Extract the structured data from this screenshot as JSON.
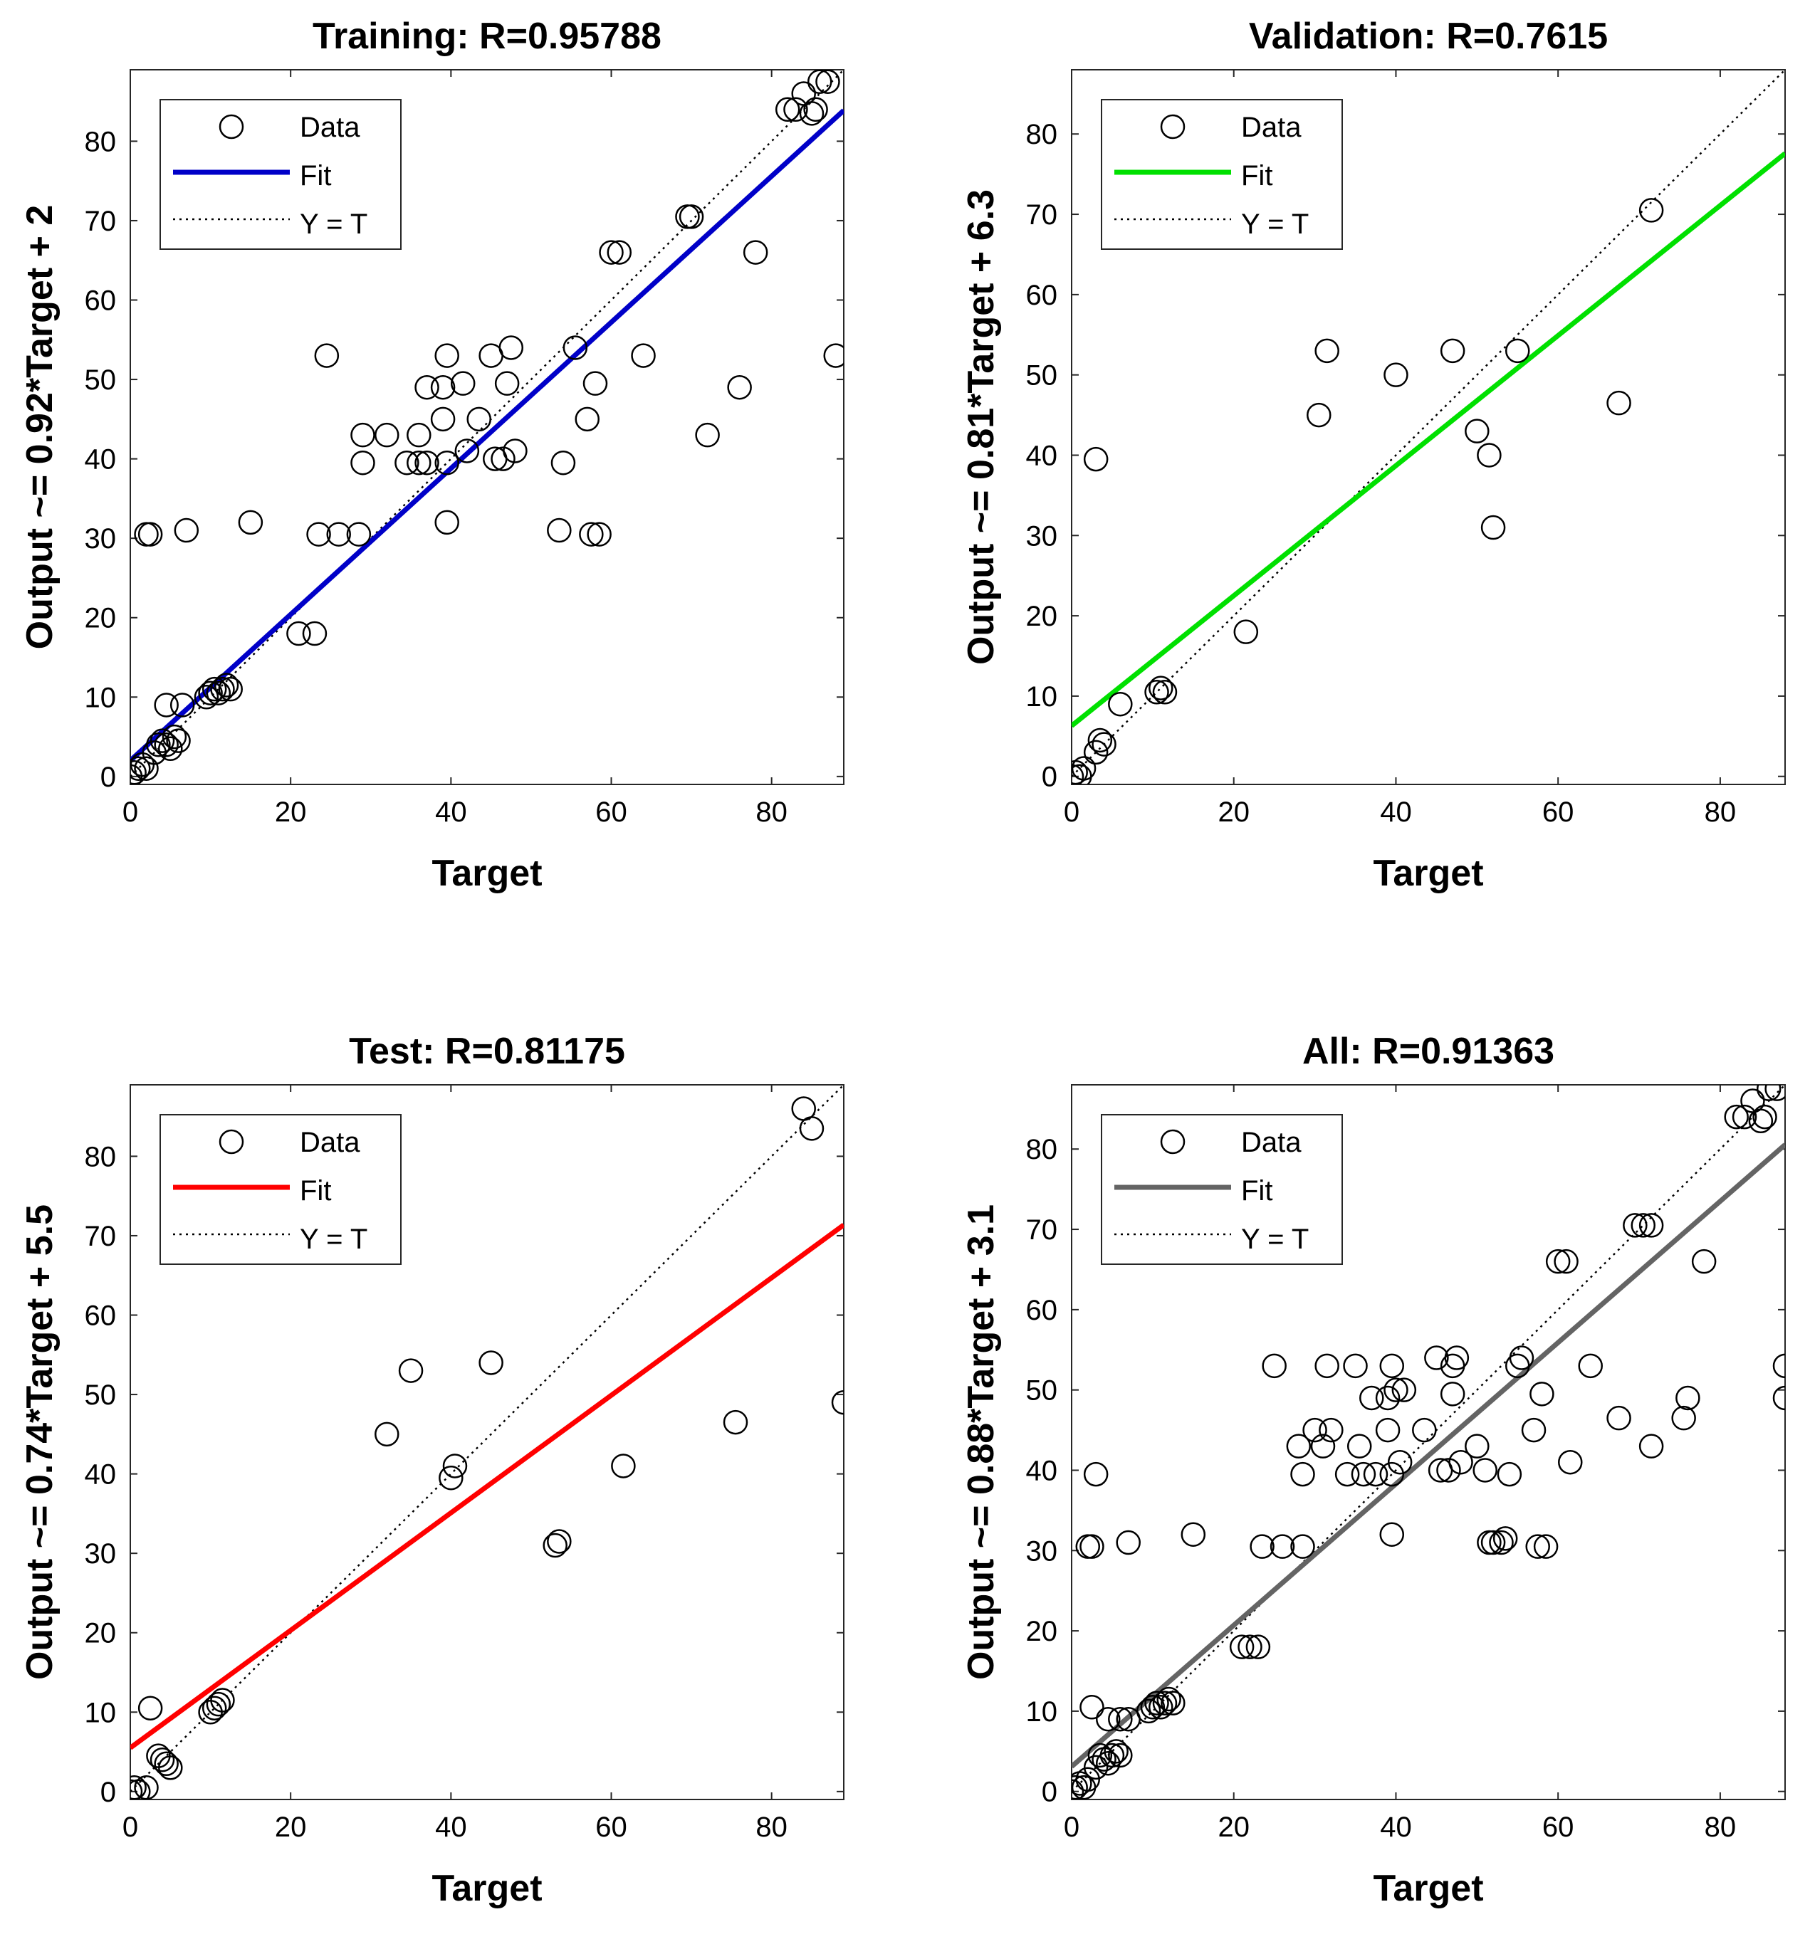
{
  "chart_data": [
    {
      "type": "scatter",
      "title": "Training: R=0.95788",
      "xlabel": "Target",
      "ylabel": "Output ~= 0.92*Target + 2",
      "xlim": [
        0,
        89
      ],
      "ylim": [
        -1,
        89
      ],
      "xticks": [
        0,
        20,
        40,
        60,
        80
      ],
      "yticks": [
        0,
        10,
        20,
        30,
        40,
        50,
        60,
        70,
        80
      ],
      "fit": {
        "slope": 0.92,
        "intercept": 2,
        "color": "#0000c8"
      },
      "legend": {
        "position": "top-left",
        "items": [
          "Data",
          "Fit",
          "Y = T"
        ]
      },
      "points": [
        [
          0,
          0
        ],
        [
          0.5,
          0.5
        ],
        [
          1,
          1
        ],
        [
          1.5,
          1.5
        ],
        [
          2,
          1
        ],
        [
          3,
          3
        ],
        [
          3.5,
          4
        ],
        [
          4,
          4.5
        ],
        [
          4.5,
          4
        ],
        [
          5,
          3.5
        ],
        [
          5.5,
          5
        ],
        [
          6,
          4.5
        ],
        [
          4.5,
          9
        ],
        [
          6.5,
          9
        ],
        [
          9.5,
          10
        ],
        [
          10,
          10.5
        ],
        [
          10.5,
          11
        ],
        [
          11,
          10.5
        ],
        [
          11.5,
          11
        ],
        [
          12,
          11.5
        ],
        [
          12.5,
          11
        ],
        [
          2,
          30.5
        ],
        [
          2.5,
          30.5
        ],
        [
          7,
          31
        ],
        [
          15,
          32
        ],
        [
          21,
          18
        ],
        [
          23,
          18
        ],
        [
          24.5,
          53
        ],
        [
          23.5,
          30.5
        ],
        [
          26,
          30.5
        ],
        [
          28.5,
          30.5
        ],
        [
          29,
          43
        ],
        [
          29,
          39.5
        ],
        [
          32,
          43
        ],
        [
          34.5,
          39.5
        ],
        [
          36,
          43
        ],
        [
          36,
          39.5
        ],
        [
          37,
          49
        ],
        [
          37,
          39.5
        ],
        [
          39,
          45
        ],
        [
          39,
          49
        ],
        [
          39.5,
          53
        ],
        [
          39.5,
          39.5
        ],
        [
          39.5,
          32
        ],
        [
          41.5,
          49.5
        ],
        [
          42,
          41
        ],
        [
          43.5,
          45
        ],
        [
          45,
          53
        ],
        [
          45.5,
          40
        ],
        [
          46.5,
          40
        ],
        [
          47,
          49.5
        ],
        [
          47.5,
          54
        ],
        [
          48,
          41
        ],
        [
          53.5,
          31
        ],
        [
          54,
          39.5
        ],
        [
          55.5,
          54
        ],
        [
          57,
          45
        ],
        [
          57.5,
          30.5
        ],
        [
          58,
          49.5
        ],
        [
          58.5,
          30.5
        ],
        [
          60,
          66
        ],
        [
          61,
          66
        ],
        [
          64,
          53
        ],
        [
          69.5,
          70.5
        ],
        [
          70,
          70.5
        ],
        [
          72,
          43
        ],
        [
          76,
          49
        ],
        [
          78,
          66
        ],
        [
          82,
          84
        ],
        [
          83,
          84
        ],
        [
          84,
          86
        ],
        [
          85,
          83.5
        ],
        [
          85.5,
          84
        ],
        [
          86,
          87.5
        ],
        [
          87,
          87.5
        ],
        [
          88,
          53
        ]
      ]
    },
    {
      "type": "scatter",
      "title": "Validation: R=0.7615",
      "xlabel": "Target",
      "ylabel": "Output ~= 0.81*Target + 6.3",
      "xlim": [
        0,
        88
      ],
      "ylim": [
        -1,
        88
      ],
      "xticks": [
        0,
        20,
        40,
        60,
        80
      ],
      "yticks": [
        0,
        10,
        20,
        30,
        40,
        50,
        60,
        70,
        80
      ],
      "fit": {
        "slope": 0.81,
        "intercept": 6.3,
        "color": "#00e000"
      },
      "legend": {
        "position": "top-left",
        "items": [
          "Data",
          "Fit",
          "Y = T"
        ]
      },
      "points": [
        [
          0,
          0
        ],
        [
          0.5,
          0.5
        ],
        [
          1,
          0
        ],
        [
          1.5,
          1
        ],
        [
          3,
          3
        ],
        [
          3.5,
          4.5
        ],
        [
          4,
          4
        ],
        [
          6,
          9
        ],
        [
          10.5,
          10.5
        ],
        [
          11,
          11
        ],
        [
          11.5,
          10.5
        ],
        [
          21.5,
          18
        ],
        [
          3,
          39.5
        ],
        [
          30.5,
          45
        ],
        [
          31.5,
          53
        ],
        [
          40,
          50
        ],
        [
          47,
          53
        ],
        [
          50,
          43
        ],
        [
          51.5,
          40
        ],
        [
          52,
          31
        ],
        [
          55,
          53
        ],
        [
          67.5,
          46.5
        ],
        [
          71.5,
          70.5
        ]
      ]
    },
    {
      "type": "scatter",
      "title": "Test: R=0.81175",
      "xlabel": "Target",
      "ylabel": "Output ~= 0.74*Target + 5.5",
      "xlim": [
        0,
        89
      ],
      "ylim": [
        -1,
        89
      ],
      "xticks": [
        0,
        20,
        40,
        60,
        80
      ],
      "yticks": [
        0,
        10,
        20,
        30,
        40,
        50,
        60,
        70,
        80
      ],
      "fit": {
        "slope": 0.74,
        "intercept": 5.5,
        "color": "#ff0000"
      },
      "legend": {
        "position": "top-left",
        "items": [
          "Data",
          "Fit",
          "Y = T"
        ]
      },
      "points": [
        [
          0,
          0
        ],
        [
          0.5,
          0.5
        ],
        [
          1,
          0
        ],
        [
          2,
          0.5
        ],
        [
          2.5,
          10.5
        ],
        [
          3.5,
          4.5
        ],
        [
          4,
          4
        ],
        [
          4.5,
          3.5
        ],
        [
          5,
          3
        ],
        [
          10,
          10
        ],
        [
          10.5,
          10.5
        ],
        [
          11,
          11
        ],
        [
          11.5,
          11.5
        ],
        [
          32,
          45
        ],
        [
          35,
          53
        ],
        [
          40,
          39.5
        ],
        [
          40.5,
          41
        ],
        [
          45,
          54
        ],
        [
          53,
          31
        ],
        [
          53.5,
          31.5
        ],
        [
          61.5,
          41
        ],
        [
          75.5,
          46.5
        ],
        [
          84,
          86
        ],
        [
          85,
          83.5
        ],
        [
          89,
          49
        ]
      ]
    },
    {
      "type": "scatter",
      "title": "All: R=0.91363",
      "xlabel": "Target",
      "ylabel": "Output ~= 0.88*Target + 3.1",
      "xlim": [
        0,
        88
      ],
      "ylim": [
        -1,
        88
      ],
      "xticks": [
        0,
        20,
        40,
        60,
        80
      ],
      "yticks": [
        0,
        10,
        20,
        30,
        40,
        50,
        60,
        70,
        80
      ],
      "fit": {
        "slope": 0.88,
        "intercept": 3.1,
        "color": "#646464"
      },
      "legend": {
        "position": "top-left",
        "items": [
          "Data",
          "Fit",
          "Y = T"
        ]
      },
      "points": [
        [
          0,
          0
        ],
        [
          0.5,
          0.5
        ],
        [
          1,
          1
        ],
        [
          1.5,
          0.5
        ],
        [
          2,
          1.5
        ],
        [
          3,
          3
        ],
        [
          3.5,
          4.5
        ],
        [
          4,
          4
        ],
        [
          4.5,
          3.5
        ],
        [
          5,
          4.5
        ],
        [
          5.5,
          5
        ],
        [
          6,
          4.5
        ],
        [
          4.5,
          9
        ],
        [
          6,
          9
        ],
        [
          7,
          9
        ],
        [
          9.5,
          10
        ],
        [
          10,
          10.5
        ],
        [
          10.5,
          11
        ],
        [
          11,
          10.5
        ],
        [
          11.5,
          11
        ],
        [
          12,
          11.5
        ],
        [
          12.5,
          11
        ],
        [
          2.5,
          10.5
        ],
        [
          2,
          30.5
        ],
        [
          2.5,
          30.5
        ],
        [
          7,
          31
        ],
        [
          15,
          32
        ],
        [
          21,
          18
        ],
        [
          22,
          18
        ],
        [
          23,
          18
        ],
        [
          3,
          39.5
        ],
        [
          25,
          53
        ],
        [
          23.5,
          30.5
        ],
        [
          26,
          30.5
        ],
        [
          28,
          43
        ],
        [
          28.5,
          39.5
        ],
        [
          28.5,
          30.5
        ],
        [
          30,
          45
        ],
        [
          31,
          43
        ],
        [
          31.5,
          53
        ],
        [
          32,
          45
        ],
        [
          34,
          39.5
        ],
        [
          35,
          53
        ],
        [
          35.5,
          43
        ],
        [
          36,
          39.5
        ],
        [
          37,
          49
        ],
        [
          37.5,
          39.5
        ],
        [
          39,
          45
        ],
        [
          39,
          49
        ],
        [
          39.5,
          53
        ],
        [
          39.5,
          39.5
        ],
        [
          39.5,
          32
        ],
        [
          40,
          50
        ],
        [
          40.5,
          41
        ],
        [
          41,
          50
        ],
        [
          43.5,
          45
        ],
        [
          45,
          54
        ],
        [
          45.5,
          40
        ],
        [
          46.5,
          40
        ],
        [
          47,
          49.5
        ],
        [
          47,
          53
        ],
        [
          47.5,
          54
        ],
        [
          48,
          41
        ],
        [
          50,
          43
        ],
        [
          51,
          40
        ],
        [
          51.5,
          31
        ],
        [
          52,
          31
        ],
        [
          53,
          31
        ],
        [
          53.5,
          31.5
        ],
        [
          54,
          39.5
        ],
        [
          55,
          53
        ],
        [
          55.5,
          54
        ],
        [
          57,
          45
        ],
        [
          57.5,
          30.5
        ],
        [
          58,
          49.5
        ],
        [
          58.5,
          30.5
        ],
        [
          60,
          66
        ],
        [
          61,
          66
        ],
        [
          61.5,
          41
        ],
        [
          64,
          53
        ],
        [
          67.5,
          46.5
        ],
        [
          69.5,
          70.5
        ],
        [
          70.5,
          70.5
        ],
        [
          71.5,
          70.5
        ],
        [
          71.5,
          43
        ],
        [
          75.5,
          46.5
        ],
        [
          76,
          49
        ],
        [
          78,
          66
        ],
        [
          82,
          84
        ],
        [
          83,
          84
        ],
        [
          84,
          86
        ],
        [
          85,
          83.5
        ],
        [
          85.5,
          84
        ],
        [
          86,
          87.5
        ],
        [
          87,
          87.5
        ],
        [
          88,
          53
        ],
        [
          88,
          49
        ]
      ]
    }
  ]
}
